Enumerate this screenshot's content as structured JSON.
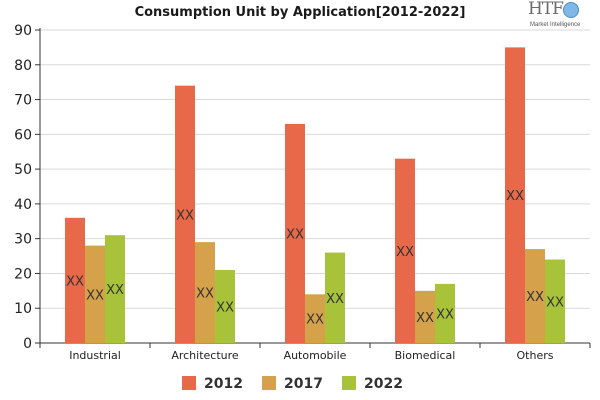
{
  "title": "Consumption Unit by  Application[2012-2022]",
  "logo": {
    "mark": "HTF",
    "sub": "Market Intelligence",
    "icon": "globe-icon"
  },
  "chart_data": {
    "type": "bar",
    "categories": [
      "Industrial",
      "Architecture",
      "Automobile",
      "Biomedical",
      "Others"
    ],
    "series": [
      {
        "name": "2012",
        "color": "#e8684a",
        "values": [
          36,
          74,
          63,
          53,
          85
        ]
      },
      {
        "name": "2017",
        "color": "#d5a14b",
        "values": [
          28,
          29,
          14,
          15,
          27
        ]
      },
      {
        "name": "2022",
        "color": "#a8c23a",
        "values": [
          31,
          21,
          26,
          17,
          24
        ]
      }
    ],
    "data_label": "XX",
    "ylim": [
      0,
      90
    ],
    "yticks": [
      0,
      10,
      20,
      30,
      40,
      50,
      60,
      70,
      80,
      90
    ],
    "grid": true,
    "legend": "bottom"
  }
}
